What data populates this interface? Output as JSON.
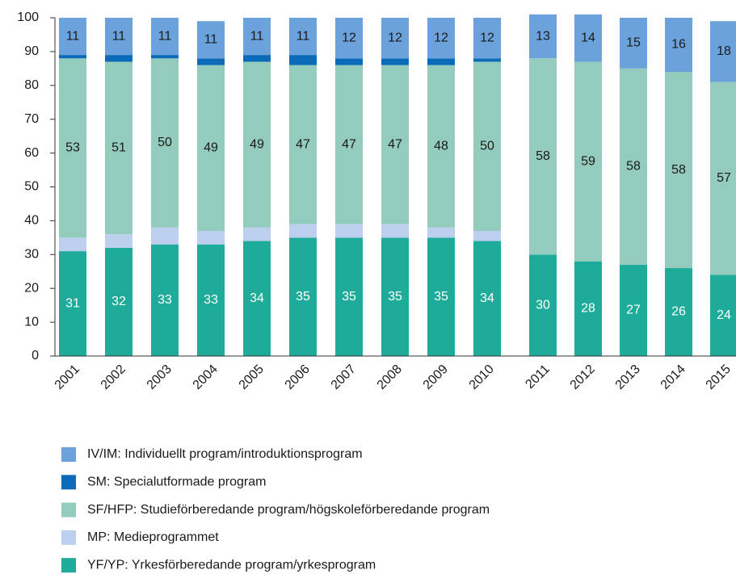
{
  "chart_data": {
    "type": "bar",
    "stacked": true,
    "categories": [
      "2001",
      "2002",
      "2003",
      "2004",
      "2005",
      "2006",
      "2007",
      "2008",
      "2009",
      "2010",
      "2011",
      "2012",
      "2013",
      "2014",
      "2015"
    ],
    "series": [
      {
        "name": "YF/YP: Yrkesförberedande program/yrkesprogram",
        "color": "#1fab99",
        "label_color": "#ffffff",
        "values": [
          31,
          32,
          33,
          33,
          34,
          35,
          35,
          35,
          35,
          34,
          30,
          28,
          27,
          26,
          24
        ],
        "show_labels": true
      },
      {
        "name": "MP: Medieprogrammet",
        "color": "#bccfef",
        "values": [
          4,
          4,
          5,
          4,
          4,
          4,
          4,
          4,
          3,
          3,
          0,
          0,
          0,
          0,
          0
        ],
        "show_labels": false
      },
      {
        "name": "SF/HFP: Studieförberedande program/högskoleförberedande program",
        "color": "#93cbbd",
        "label_color": "#1a1a1a",
        "values": [
          53,
          51,
          50,
          49,
          49,
          47,
          47,
          47,
          48,
          50,
          58,
          59,
          58,
          58,
          57
        ],
        "show_labels": true
      },
      {
        "name": "SM: Specialutformade program",
        "color": "#0b6bb8",
        "values": [
          1,
          2,
          1,
          2,
          2,
          3,
          2,
          2,
          2,
          1,
          0,
          0,
          0,
          0,
          0
        ],
        "show_labels": false
      },
      {
        "name": "IV/IM: Individuellt program/introduktionsprogram",
        "color": "#6ca2dc",
        "label_color": "#1a1a1a",
        "values": [
          11,
          11,
          11,
          11,
          11,
          11,
          12,
          12,
          12,
          12,
          13,
          14,
          15,
          16,
          18
        ],
        "show_labels": true
      }
    ],
    "ylim": [
      0,
      100
    ],
    "yticks": [
      0,
      10,
      20,
      30,
      40,
      50,
      60,
      70,
      80,
      90,
      100
    ],
    "legend": "bottom-left"
  }
}
